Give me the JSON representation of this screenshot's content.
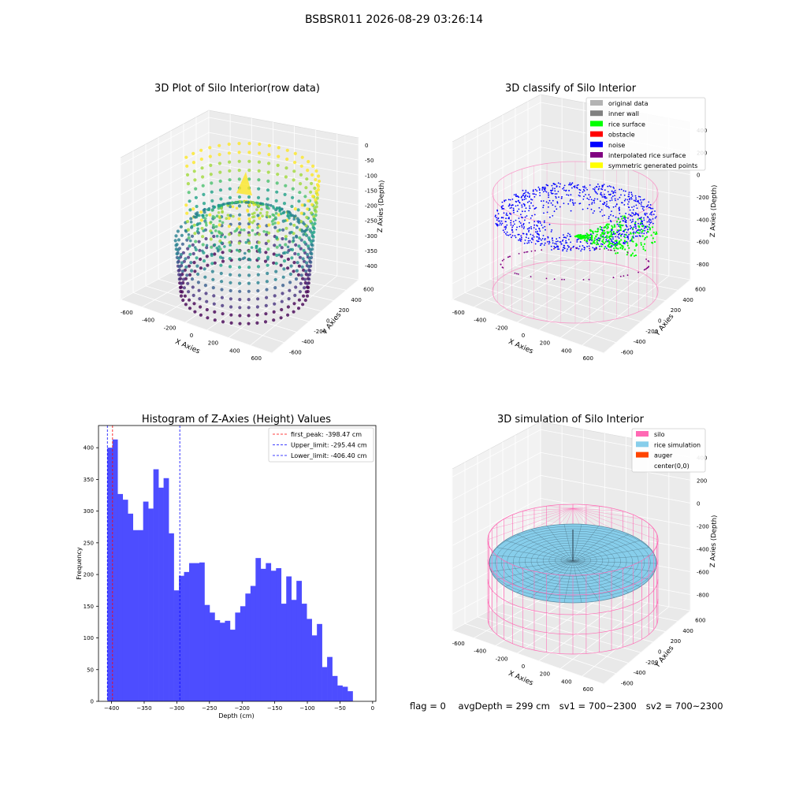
{
  "main_title": "BSBSR011 2026-08-29 03:26:14",
  "footer": {
    "flag": "flag = 0",
    "avg_depth": "avgDepth = 299 cm",
    "sv1": "sv1 = 700~2300",
    "sv2": "sv2 = 700~2300"
  },
  "plot3d_raw": {
    "title": "3D Plot of Silo Interior(row data)",
    "xlabel": "X Axies",
    "ylabel": "Y Axies",
    "zlabel": "Z Axies (Depth)",
    "x_ticks": [
      "-600",
      "-400",
      "-200",
      "0",
      "200",
      "400",
      "600"
    ],
    "y_ticks": [
      "-600",
      "-400",
      "-200",
      "0",
      "200",
      "400",
      "600"
    ],
    "z_ticks": [
      "0",
      "-50",
      "-100",
      "-150",
      "-200",
      "-250",
      "-300",
      "-350",
      "-400"
    ]
  },
  "plot3d_classify": {
    "title": "3D classify of Silo Interior",
    "xlabel": "X Axies",
    "ylabel": "Y Axies",
    "zlabel": "Z Axies (Depth)",
    "x_ticks": [
      "-600",
      "-400",
      "-200",
      "0",
      "200",
      "400",
      "600"
    ],
    "y_ticks": [
      "-600",
      "-400",
      "-200",
      "0",
      "200",
      "400",
      "600"
    ],
    "z_ticks": [
      "400",
      "200",
      "0",
      "-200",
      "-400",
      "-600",
      "-800"
    ],
    "legend": [
      {
        "label": "original data",
        "color": "#b3b3b3"
      },
      {
        "label": "inner wall",
        "color": "#808080"
      },
      {
        "label": "rice surface",
        "color": "#00ff00"
      },
      {
        "label": "obstacle",
        "color": "#ff0000"
      },
      {
        "label": "noise",
        "color": "#0000ff"
      },
      {
        "label": "interpolated rice surface",
        "color": "#800080"
      },
      {
        "label": "symmetric generated points",
        "color": "#ffff00"
      }
    ]
  },
  "plot3d_sim": {
    "title": "3D simulation of Silo Interior",
    "xlabel": "X Axies",
    "ylabel": "Y Axies",
    "zlabel": "Z Axies (Depth)",
    "x_ticks": [
      "-600",
      "-400",
      "-200",
      "0",
      "200",
      "400",
      "600"
    ],
    "y_ticks": [
      "-600",
      "-400",
      "-200",
      "0",
      "200",
      "400",
      "600"
    ],
    "z_ticks": [
      "400",
      "200",
      "0",
      "-200",
      "-400",
      "-600",
      "-800"
    ],
    "legend": [
      {
        "label": "silo",
        "color": "#ff69b4"
      },
      {
        "label": "rice simulation",
        "color": "#87ceeb"
      },
      {
        "label": "auger",
        "color": "#ff4500"
      },
      {
        "label": "center(0,0)",
        "color": "none"
      }
    ]
  },
  "chart_data": [
    {
      "type": "bar",
      "title": "Histogram of Z-Axies (Height) Values",
      "xlabel": "Depth (cm)",
      "ylabel": "Frequency",
      "xlim": [
        -420,
        5
      ],
      "ylim": [
        0,
        435
      ],
      "x_ticks": [
        -400,
        -350,
        -300,
        -250,
        -200,
        -150,
        -100,
        -50,
        0
      ],
      "y_ticks": [
        0,
        50,
        100,
        150,
        200,
        250,
        300,
        350,
        400
      ],
      "bin_start": -406.4,
      "bin_width": 7.83,
      "values": [
        400,
        413,
        327,
        318,
        296,
        270,
        270,
        315,
        304,
        366,
        337,
        352,
        265,
        175,
        198,
        204,
        218,
        218,
        219,
        152,
        140,
        128,
        124,
        127,
        113,
        140,
        150,
        170,
        182,
        226,
        209,
        218,
        206,
        210,
        154,
        197,
        160,
        190,
        154,
        130,
        104,
        122,
        54,
        70,
        40,
        25,
        23,
        16
      ],
      "bar_color": "#4d4dff",
      "vlines": [
        {
          "label": "first_peak: -398.47 cm",
          "x": -398.47,
          "color": "#ff0000"
        },
        {
          "label": "Upper_limit: -295.44 cm",
          "x": -295.44,
          "color": "#0000ff"
        },
        {
          "label": "Lower_limit: -406.40 cm",
          "x": -406.4,
          "color": "#0000ff"
        }
      ],
      "legend_position": "upper right"
    }
  ]
}
